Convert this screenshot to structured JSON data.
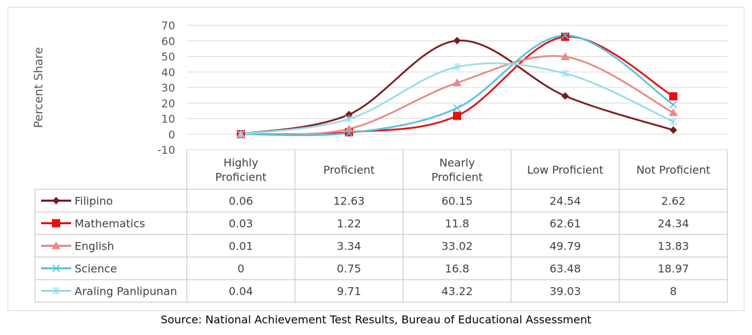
{
  "chart_data": {
    "type": "line",
    "ylabel": "Percent Share",
    "ylim": [
      -10,
      70
    ],
    "yticks": [
      70,
      60,
      50,
      40,
      30,
      20,
      10,
      0,
      -10
    ],
    "categories": [
      "Highly Proficient",
      "Proficient",
      "Nearly Proficient",
      "Low Proficient",
      "Not Proficient"
    ],
    "category_lines": [
      [
        "Highly",
        "Proficient"
      ],
      [
        "Proficient"
      ],
      [
        "Nearly",
        "Proficient"
      ],
      [
        "Low Proficient"
      ],
      [
        "Not Proficient"
      ]
    ],
    "data_table": true,
    "grid": true,
    "smooth": true,
    "series": [
      {
        "name": "Filipino",
        "color": "#7b1c1c",
        "marker": "diamond",
        "values": [
          0.06,
          12.63,
          60.15,
          24.54,
          2.62
        ]
      },
      {
        "name": "Mathematics",
        "color": "#e31313",
        "marker": "square",
        "values": [
          0.03,
          1.22,
          11.8,
          62.61,
          24.34
        ]
      },
      {
        "name": "English",
        "color": "#e88a85",
        "marker": "triangle",
        "values": [
          0.01,
          3.34,
          33.02,
          49.79,
          13.83
        ]
      },
      {
        "name": "Science",
        "color": "#5bc3dd",
        "marker": "x",
        "values": [
          0,
          0.75,
          16.8,
          63.48,
          18.97
        ]
      },
      {
        "name": "Araling Panlipunan",
        "color": "#9edbea",
        "marker": "star",
        "values": [
          0.04,
          9.71,
          43.22,
          39.03,
          8
        ]
      }
    ]
  },
  "source": "Source: National Achievement Test Results, Bureau of Educational Assessment"
}
